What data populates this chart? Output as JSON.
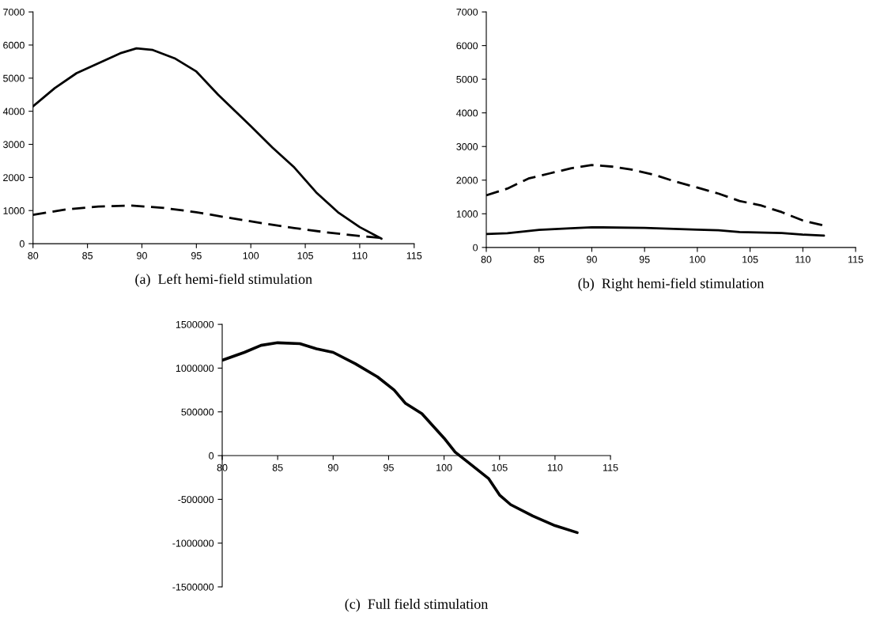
{
  "chart_data": [
    {
      "type": "line",
      "title": "(a)  Left hemi-field stimulation",
      "xlim": [
        80,
        115
      ],
      "ylim": [
        0,
        7000
      ],
      "xticks": [
        80,
        85,
        90,
        95,
        100,
        105,
        110,
        115
      ],
      "yticks": [
        0,
        1000,
        2000,
        3000,
        4000,
        5000,
        6000,
        7000
      ],
      "grid": false,
      "legend": false,
      "series": [
        {
          "color": "#000000",
          "line_style": "solid",
          "x": [
            80,
            82,
            84,
            86,
            88,
            89.5,
            91,
            93,
            95,
            97,
            100,
            102,
            104,
            106,
            108,
            110,
            112
          ],
          "values": [
            4150,
            4700,
            5150,
            5450,
            5750,
            5900,
            5850,
            5600,
            5200,
            4500,
            3550,
            2900,
            2300,
            1550,
            950,
            500,
            150
          ]
        },
        {
          "color": "#000000",
          "line_style": "dashed",
          "x": [
            80,
            83,
            86,
            89,
            92,
            95,
            98,
            101,
            104,
            107,
            110,
            112
          ],
          "values": [
            870,
            1030,
            1120,
            1150,
            1080,
            950,
            780,
            620,
            470,
            340,
            230,
            170
          ]
        }
      ]
    },
    {
      "type": "line",
      "title": "(b)  Right hemi-field stimulation",
      "xlim": [
        80,
        115
      ],
      "ylim": [
        0,
        7000
      ],
      "xticks": [
        80,
        85,
        90,
        95,
        100,
        105,
        110,
        115
      ],
      "yticks": [
        0,
        1000,
        2000,
        3000,
        4000,
        5000,
        6000,
        7000
      ],
      "grid": false,
      "legend": false,
      "series": [
        {
          "color": "#000000",
          "line_style": "dashed",
          "x": [
            80,
            82,
            84,
            86,
            88,
            90,
            92,
            94,
            96,
            98,
            100,
            102,
            104,
            106,
            108,
            110,
            112
          ],
          "values": [
            1550,
            1750,
            2050,
            2200,
            2350,
            2450,
            2400,
            2300,
            2150,
            1950,
            1780,
            1600,
            1380,
            1250,
            1050,
            800,
            650
          ]
        },
        {
          "color": "#000000",
          "line_style": "solid",
          "x": [
            80,
            82,
            85,
            88,
            90,
            95,
            100,
            102,
            104,
            108,
            110,
            112
          ],
          "values": [
            400,
            420,
            520,
            570,
            600,
            580,
            530,
            510,
            460,
            430,
            380,
            350
          ]
        }
      ]
    },
    {
      "type": "line",
      "title": "(c)  Full field stimulation",
      "xlim": [
        80,
        115
      ],
      "ylim": [
        -1500000,
        1500000
      ],
      "xticks": [
        80,
        85,
        90,
        95,
        100,
        105,
        110,
        115
      ],
      "yticks": [
        -1500000,
        -1000000,
        -500000,
        0,
        500000,
        1000000,
        1500000
      ],
      "grid": false,
      "legend": false,
      "series": [
        {
          "color": "#000000",
          "line_style": "solid",
          "x": [
            80,
            82,
            83.5,
            85,
            87,
            88.5,
            90,
            92,
            94,
            95.5,
            96.5,
            98,
            100,
            101,
            102,
            104,
            105,
            106,
            108,
            110,
            112
          ],
          "values": [
            1090000,
            1180000,
            1260000,
            1290000,
            1280000,
            1220000,
            1180000,
            1050000,
            900000,
            750000,
            600000,
            480000,
            200000,
            40000,
            -60000,
            -260000,
            -450000,
            -560000,
            -690000,
            -800000,
            -880000
          ]
        }
      ]
    }
  ]
}
